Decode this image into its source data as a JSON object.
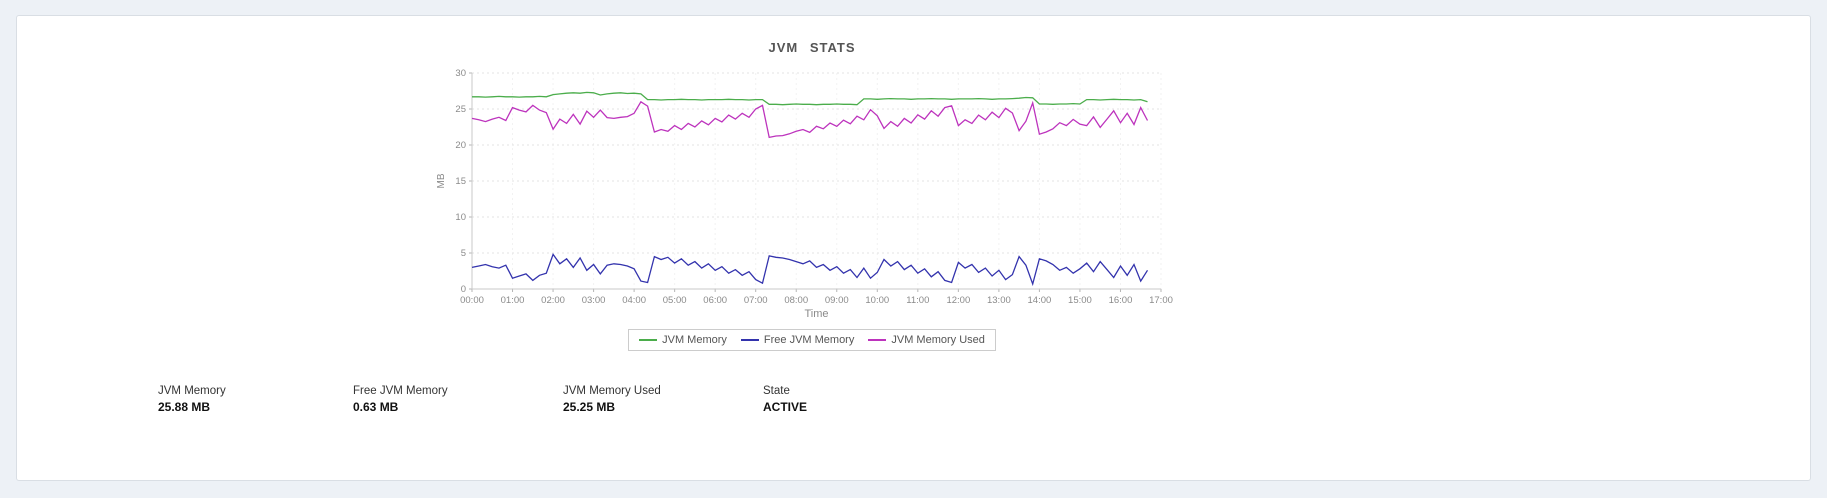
{
  "page": {
    "background": "#edf1f6",
    "card_background": "#ffffff",
    "card_border": "#d9dee4"
  },
  "chart_data": {
    "type": "line",
    "title": "JVM STATS",
    "xlabel": "Time",
    "ylabel": "MB",
    "ylim": [
      0,
      30
    ],
    "y_ticks": [
      0,
      5,
      10,
      15,
      20,
      25,
      30
    ],
    "x_range_hours": [
      0,
      17
    ],
    "x_interval_minutes": 10,
    "x_tick_labels": [
      "00:00",
      "01:00",
      "02:00",
      "03:00",
      "04:00",
      "05:00",
      "06:00",
      "07:00",
      "08:00",
      "09:00",
      "10:00",
      "11:00",
      "12:00",
      "13:00",
      "14:00",
      "15:00",
      "16:00",
      "17:00"
    ],
    "grid": true,
    "legend_position": "bottom",
    "axis_color": "#c9c9c9",
    "grid_color": "#e3e3e3",
    "tick_label_color": "#8a8a8a",
    "series": [
      {
        "name": "JVM Memory",
        "color": "#4bad4b",
        "values": [
          26.7,
          26.7,
          26.65,
          26.7,
          26.75,
          26.7,
          26.7,
          26.65,
          26.7,
          26.7,
          26.75,
          26.7,
          27.0,
          27.1,
          27.2,
          27.25,
          27.2,
          27.3,
          27.25,
          26.95,
          27.1,
          27.2,
          27.25,
          27.15,
          27.2,
          27.1,
          26.3,
          26.3,
          26.25,
          26.3,
          26.3,
          26.35,
          26.3,
          26.3,
          26.25,
          26.3,
          26.3,
          26.3,
          26.35,
          26.3,
          26.3,
          26.25,
          26.3,
          26.3,
          25.65,
          25.65,
          25.6,
          25.65,
          25.7,
          25.65,
          25.65,
          25.6,
          25.65,
          25.65,
          25.7,
          25.65,
          25.65,
          25.6,
          26.4,
          26.4,
          26.35,
          26.4,
          26.45,
          26.4,
          26.4,
          26.35,
          26.4,
          26.4,
          26.45,
          26.4,
          26.4,
          26.35,
          26.4,
          26.4,
          26.4,
          26.45,
          26.4,
          26.35,
          26.4,
          26.4,
          26.45,
          26.5,
          26.6,
          26.55,
          25.7,
          25.7,
          25.65,
          25.7,
          25.7,
          25.75,
          25.7,
          26.3,
          26.3,
          26.25,
          26.3,
          26.35,
          26.3,
          26.3,
          26.25,
          26.3,
          26.0
        ]
      },
      {
        "name": "Free JVM Memory",
        "color": "#3333ad",
        "values": [
          3.0,
          3.2,
          3.4,
          3.1,
          2.9,
          3.3,
          1.5,
          1.8,
          2.1,
          1.2,
          1.9,
          2.2,
          4.8,
          3.5,
          4.2,
          3.0,
          4.3,
          2.6,
          3.4,
          2.1,
          3.3,
          3.5,
          3.4,
          3.2,
          2.8,
          1.1,
          0.9,
          4.5,
          4.1,
          4.4,
          3.6,
          4.2,
          3.3,
          3.8,
          2.9,
          3.5,
          2.6,
          3.1,
          2.2,
          2.7,
          1.9,
          2.4,
          1.3,
          0.8,
          4.6,
          4.4,
          4.3,
          4.1,
          3.8,
          3.5,
          3.9,
          3.0,
          3.4,
          2.6,
          3.1,
          2.2,
          2.7,
          1.6,
          2.9,
          1.5,
          2.3,
          4.1,
          3.2,
          3.8,
          2.7,
          3.3,
          2.2,
          2.8,
          1.7,
          2.4,
          1.2,
          0.9,
          3.7,
          2.9,
          3.4,
          2.3,
          2.9,
          1.8,
          2.6,
          1.3,
          2.0,
          4.5,
          3.3,
          0.7,
          4.2,
          3.9,
          3.4,
          2.6,
          3.0,
          2.2,
          2.8,
          3.6,
          2.4,
          3.8,
          2.7,
          1.6,
          3.2,
          1.9,
          3.4,
          1.1,
          2.6
        ]
      },
      {
        "name": "JVM Memory Used",
        "color": "#bd33bd",
        "values": [
          23.7,
          23.5,
          23.25,
          23.6,
          23.85,
          23.4,
          25.2,
          24.85,
          24.6,
          25.5,
          24.85,
          24.5,
          22.2,
          23.6,
          23.0,
          24.25,
          22.9,
          24.7,
          23.85,
          24.85,
          23.8,
          23.7,
          23.85,
          23.95,
          24.4,
          26.0,
          25.4,
          21.8,
          22.15,
          21.9,
          22.7,
          22.15,
          23.0,
          22.5,
          23.35,
          22.8,
          23.7,
          23.2,
          24.15,
          23.6,
          24.4,
          23.85,
          25.0,
          25.5,
          21.05,
          21.25,
          21.3,
          21.55,
          21.9,
          22.15,
          21.75,
          22.6,
          22.25,
          23.05,
          22.6,
          23.45,
          22.95,
          24.0,
          23.5,
          24.9,
          24.05,
          22.3,
          23.25,
          22.6,
          23.7,
          23.05,
          24.2,
          23.6,
          24.75,
          24.0,
          25.2,
          25.45,
          22.7,
          23.5,
          23.0,
          24.15,
          23.5,
          24.55,
          23.8,
          25.1,
          24.45,
          22.0,
          23.3,
          25.85,
          21.5,
          21.8,
          22.25,
          23.1,
          22.7,
          23.55,
          22.9,
          22.7,
          23.9,
          22.45,
          23.6,
          24.75,
          23.1,
          24.4,
          22.85,
          25.2,
          23.4
        ]
      }
    ]
  },
  "stats": [
    {
      "label": "JVM Memory",
      "value": "25.88 MB"
    },
    {
      "label": "Free JVM Memory",
      "value": "0.63 MB"
    },
    {
      "label": "JVM Memory Used",
      "value": "25.25 MB"
    },
    {
      "label": "State",
      "value": "ACTIVE"
    }
  ]
}
